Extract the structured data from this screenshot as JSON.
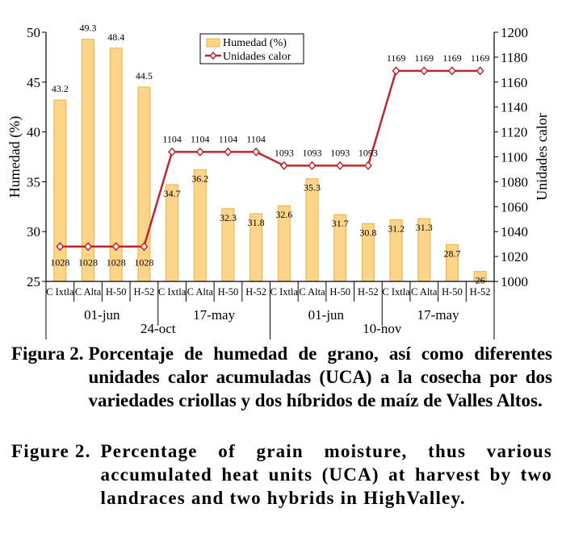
{
  "chart_data": {
    "type": "bar+line",
    "categories": [
      "C Ixtla",
      "C Alta",
      "H-50",
      "H-52",
      "C Ixtla",
      "C Alta",
      "H-50",
      "H-52",
      "C Ixtla",
      "C Alta",
      "H-50",
      "H-52",
      "C Ixtla",
      "C Alta",
      "H-50",
      "H-52"
    ],
    "sowing_groups": [
      "01-jun",
      "17-may",
      "01-jun",
      "17-may"
    ],
    "harvest_groups": [
      "24-oct",
      "10-nov"
    ],
    "series": [
      {
        "name": "Humedad (%)",
        "type": "bar",
        "axis": "left",
        "values": [
          43.2,
          49.3,
          48.4,
          44.5,
          34.7,
          36.2,
          32.3,
          31.8,
          32.6,
          35.3,
          31.7,
          30.8,
          31.2,
          31.3,
          28.7,
          26
        ],
        "labels": [
          "43.2",
          "49.3",
          "48.4",
          "44.5",
          "34.7",
          "36.2",
          "32.3",
          "31.8",
          "32.6",
          "35.3",
          "31.7",
          "30.8",
          "31.2",
          "31.3",
          "28.7",
          "26"
        ],
        "color": "#fdd58a",
        "edge_color": "#f2b03d"
      },
      {
        "name": "Unidades calor",
        "type": "line",
        "axis": "right",
        "values": [
          1028,
          1028,
          1028,
          1028,
          1104,
          1104,
          1104,
          1104,
          1093,
          1093,
          1093,
          1093,
          1169,
          1169,
          1169,
          1169
        ],
        "labels": [
          "1028",
          "1028",
          "1028",
          "1028",
          "1104",
          "1104",
          "1104",
          "1104",
          "1093",
          "1093",
          "1093",
          "1093",
          "1169",
          "1169",
          "1169",
          "1169"
        ],
        "color": "#c0262b"
      }
    ],
    "ylabel": "Humedad (%)",
    "y2label": "Unidades calor",
    "ylim": [
      25,
      50
    ],
    "y2lim": [
      1000,
      1200
    ],
    "yticks": [
      "25",
      "30",
      "35",
      "40",
      "45",
      "50"
    ],
    "y2ticks": [
      "1000",
      "1020",
      "1040",
      "1060",
      "1080",
      "1100",
      "1120",
      "1140",
      "1160",
      "1180",
      "1200"
    ],
    "legend": [
      "Humedad (%)",
      "Unidades calor"
    ],
    "legend_position": "top-center"
  },
  "caption_es": {
    "label": "Figura 2.",
    "text": "Porcentaje de humedad de grano, así como diferentes unidades calor acumuladas (UCA) a la cosecha por dos variedades criollas y dos híbridos de maíz de Valles Altos."
  },
  "caption_en": {
    "label": "Figure 2.",
    "text": "Percentage of grain moisture, thus various accumulated heat units (UCA) at harvest by two landraces and two hybrids in HighValley."
  }
}
